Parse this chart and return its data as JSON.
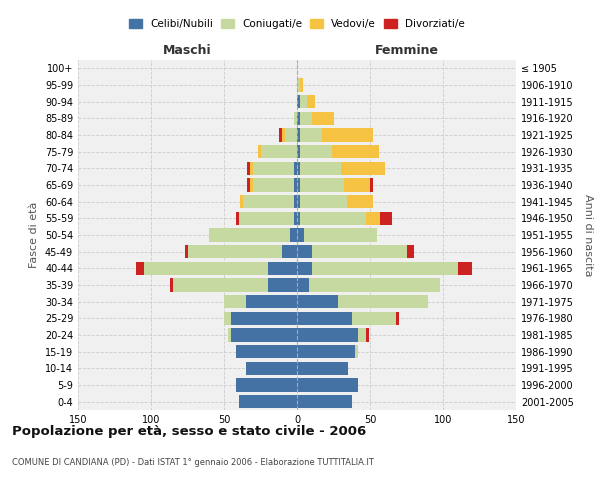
{
  "age_groups": [
    "0-4",
    "5-9",
    "10-14",
    "15-19",
    "20-24",
    "25-29",
    "30-34",
    "35-39",
    "40-44",
    "45-49",
    "50-54",
    "55-59",
    "60-64",
    "65-69",
    "70-74",
    "75-79",
    "80-84",
    "85-89",
    "90-94",
    "95-99",
    "100+"
  ],
  "birth_years": [
    "2001-2005",
    "1996-2000",
    "1991-1995",
    "1986-1990",
    "1981-1985",
    "1976-1980",
    "1971-1975",
    "1966-1970",
    "1961-1965",
    "1956-1960",
    "1951-1955",
    "1946-1950",
    "1941-1945",
    "1936-1940",
    "1931-1935",
    "1926-1930",
    "1921-1925",
    "1916-1920",
    "1911-1915",
    "1906-1910",
    "≤ 1905"
  ],
  "males": {
    "single": [
      40,
      42,
      35,
      42,
      45,
      45,
      35,
      20,
      20,
      10,
      5,
      2,
      2,
      2,
      2,
      0,
      0,
      0,
      0,
      0,
      0
    ],
    "married": [
      0,
      0,
      0,
      0,
      2,
      5,
      15,
      65,
      85,
      65,
      55,
      38,
      35,
      28,
      28,
      25,
      8,
      2,
      0,
      0,
      0
    ],
    "widowed": [
      0,
      0,
      0,
      0,
      0,
      0,
      0,
      0,
      0,
      0,
      0,
      0,
      2,
      2,
      2,
      2,
      2,
      0,
      0,
      0,
      0
    ],
    "divorced": [
      0,
      0,
      0,
      0,
      0,
      0,
      0,
      2,
      5,
      2,
      0,
      2,
      0,
      2,
      2,
      0,
      2,
      0,
      0,
      0,
      0
    ]
  },
  "females": {
    "single": [
      38,
      42,
      35,
      40,
      42,
      38,
      28,
      8,
      10,
      10,
      5,
      2,
      2,
      2,
      2,
      2,
      2,
      2,
      2,
      0,
      0
    ],
    "married": [
      0,
      0,
      0,
      2,
      5,
      30,
      62,
      90,
      100,
      65,
      50,
      45,
      32,
      30,
      28,
      22,
      15,
      8,
      5,
      2,
      0
    ],
    "widowed": [
      0,
      0,
      0,
      0,
      0,
      0,
      0,
      0,
      0,
      0,
      0,
      10,
      18,
      18,
      30,
      32,
      35,
      15,
      5,
      2,
      0
    ],
    "divorced": [
      0,
      0,
      0,
      0,
      2,
      2,
      0,
      0,
      10,
      5,
      0,
      8,
      0,
      2,
      0,
      0,
      0,
      0,
      0,
      0,
      0
    ]
  },
  "colors": {
    "single": "#4472a4",
    "married": "#c5d9a0",
    "widowed": "#f5c242",
    "divorced": "#cc2222"
  },
  "xlim": 150,
  "title": "Popolazione per età, sesso e stato civile - 2006",
  "subtitle": "COMUNE DI CANDIANA (PD) - Dati ISTAT 1° gennaio 2006 - Elaborazione TUTTITALIA.IT",
  "xlabel_left": "Maschi",
  "xlabel_right": "Femmine",
  "ylabel_left": "Fasce di età",
  "ylabel_right": "Anni di nascita",
  "legend_labels": [
    "Celibi/Nubili",
    "Coniugati/e",
    "Vedovi/e",
    "Divorziati/e"
  ],
  "background_color": "#ffffff",
  "plot_bg": "#f0f0f0",
  "grid_color": "#cccccc"
}
